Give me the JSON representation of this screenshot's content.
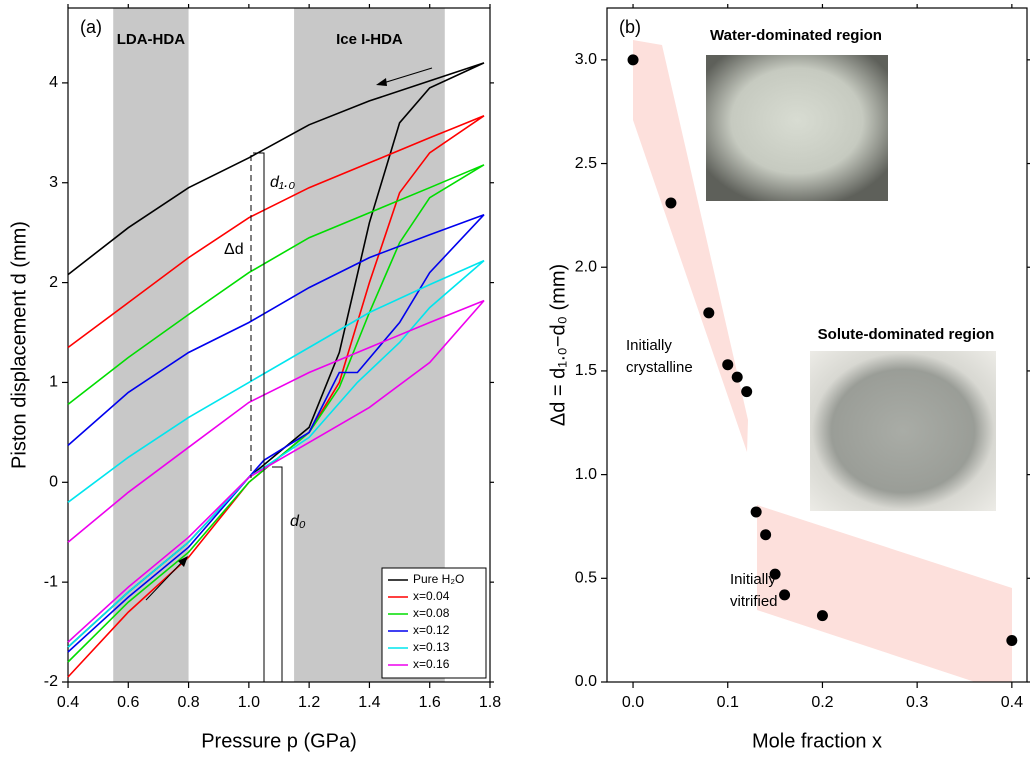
{
  "chart_data": [
    {
      "type": "line",
      "panel_label": "(a)",
      "x_label": "Pressure p (GPa)",
      "y_label": "Piston displacement d (mm)",
      "xlim": [
        0.4,
        1.8
      ],
      "ylim": [
        -2,
        4.75
      ],
      "xticks": [
        0.4,
        0.6,
        0.8,
        {
          "value": 1,
          "label": "1.0"
        },
        1.2,
        1.4,
        1.6,
        1.8
      ],
      "yticks": [
        -2,
        -1,
        0,
        1,
        2,
        3,
        4
      ],
      "shaded_regions": [
        {
          "label": "LDA-HDA",
          "xlim": [
            0.55,
            0.8
          ],
          "color": "#c8c8c8"
        },
        {
          "label": "Ice I-HDA",
          "xlim": [
            1.15,
            1.65
          ],
          "color": "#c8c8c8"
        }
      ],
      "annotations": [
        "d₁.₀",
        "Δd",
        "d₀"
      ],
      "legend": "lower right",
      "series": [
        {
          "name": "Pure H₂O",
          "color": "#000000",
          "x": [
            0.4,
            0.6,
            0.8,
            1.0,
            1.1,
            1.2,
            1.3,
            1.4,
            1.5,
            1.6,
            1.78,
            1.6,
            1.4,
            1.2,
            1.0,
            0.8,
            0.6,
            0.4
          ],
          "values": [
            -1.65,
            -1.1,
            -0.6,
            0.05,
            0.3,
            0.55,
            1.3,
            2.6,
            3.6,
            3.95,
            4.2,
            4.02,
            3.82,
            3.58,
            3.25,
            2.95,
            2.55,
            2.08
          ]
        },
        {
          "name": "x=0.04",
          "color": "#ff0000",
          "x": [
            0.4,
            0.6,
            0.8,
            1.0,
            1.2,
            1.3,
            1.4,
            1.5,
            1.6,
            1.78,
            1.6,
            1.4,
            1.2,
            1.0,
            0.8,
            0.6,
            0.4
          ],
          "values": [
            -1.95,
            -1.3,
            -0.75,
            0.0,
            0.5,
            1.0,
            2.0,
            2.9,
            3.3,
            3.67,
            3.45,
            3.2,
            2.95,
            2.65,
            2.25,
            1.8,
            1.35
          ]
        },
        {
          "name": "x=0.08",
          "color": "#00dd00",
          "x": [
            0.4,
            0.6,
            0.8,
            1.0,
            1.2,
            1.3,
            1.4,
            1.5,
            1.6,
            1.78,
            1.6,
            1.4,
            1.2,
            1.0,
            0.8,
            0.6,
            0.4
          ],
          "values": [
            -1.8,
            -1.2,
            -0.7,
            0.0,
            0.5,
            0.95,
            1.7,
            2.4,
            2.85,
            3.18,
            2.95,
            2.7,
            2.45,
            2.1,
            1.68,
            1.25,
            0.78
          ]
        },
        {
          "name": "x=0.12",
          "color": "#0000ee",
          "x": [
            0.4,
            0.6,
            0.8,
            1.0,
            1.05,
            1.2,
            1.3,
            1.36,
            1.5,
            1.6,
            1.78,
            1.6,
            1.4,
            1.2,
            1.0,
            0.8,
            0.6,
            0.4
          ],
          "values": [
            -1.7,
            -1.15,
            -0.65,
            0.05,
            0.22,
            0.5,
            1.1,
            1.1,
            1.6,
            2.1,
            2.68,
            2.48,
            2.25,
            1.95,
            1.6,
            1.3,
            0.9,
            0.37
          ]
        },
        {
          "name": "x=0.13",
          "color": "#00e5ee",
          "x": [
            0.4,
            0.6,
            0.8,
            1.0,
            1.2,
            1.36,
            1.5,
            1.6,
            1.78,
            1.6,
            1.4,
            1.2,
            1.0,
            0.8,
            0.6,
            0.4
          ],
          "values": [
            -1.65,
            -1.1,
            -0.6,
            0.05,
            0.45,
            1.0,
            1.4,
            1.75,
            2.22,
            1.98,
            1.7,
            1.35,
            1.0,
            0.65,
            0.25,
            -0.2
          ]
        },
        {
          "name": "x=0.16",
          "color": "#ee00ee",
          "x": [
            0.4,
            0.6,
            0.8,
            1.0,
            1.2,
            1.4,
            1.6,
            1.78,
            1.6,
            1.4,
            1.2,
            1.0,
            0.8,
            0.6,
            0.4
          ],
          "values": [
            -1.6,
            -1.05,
            -0.55,
            0.05,
            0.4,
            0.75,
            1.2,
            1.82,
            1.6,
            1.35,
            1.1,
            0.8,
            0.35,
            -0.1,
            -0.6
          ]
        }
      ]
    },
    {
      "type": "scatter",
      "panel_label": "(b)",
      "x_label": "Mole fraction x",
      "y_label": "Δd = d₁.₀−d₀ (mm)",
      "xlim": [
        -0.0275,
        0.416
      ],
      "ylim": [
        0,
        3.25
      ],
      "xticks": [
        {
          "value": 0,
          "label": "0.0"
        },
        0.1,
        0.2,
        0.3,
        0.4
      ],
      "yticks": [
        {
          "value": 0,
          "label": "0.0"
        },
        0.5,
        {
          "value": 1,
          "label": "1.0"
        },
        1.5,
        {
          "value": 2,
          "label": "2.0"
        },
        2.5,
        {
          "value": 3,
          "label": "3.0"
        }
      ],
      "color": "#000000",
      "x": [
        0.0,
        0.04,
        0.08,
        0.1,
        0.11,
        0.12,
        0.13,
        0.14,
        0.15,
        0.16,
        0.2,
        0.4
      ],
      "values": [
        3.0,
        2.31,
        1.78,
        1.53,
        1.47,
        1.4,
        0.82,
        0.71,
        0.52,
        0.42,
        0.32,
        0.2
      ],
      "annotations": [
        "Water-dominated region",
        "Solute-dominated region",
        "Initially",
        "crystalline",
        "Initially",
        "vitrified"
      ]
    }
  ]
}
